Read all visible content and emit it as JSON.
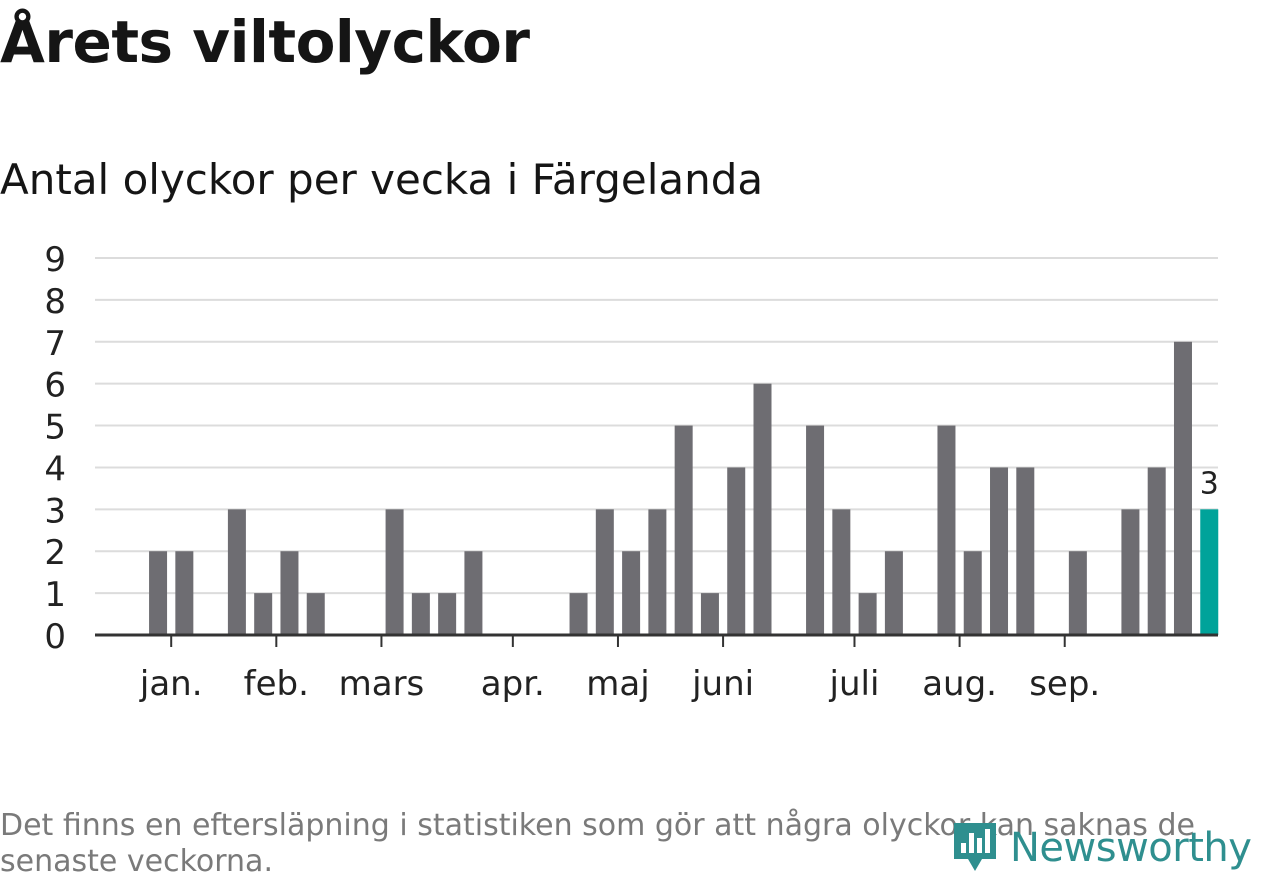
{
  "title": "Årets viltolyckor",
  "subtitle": "Antal olyckor per vecka i Färgelanda",
  "note": "Det finns en eftersläpning i statistiken som gör att några olyckor kan saknas de senaste veckorna.",
  "logo": {
    "text": "Newsworthy",
    "icon": "newsworthy-logo-icon",
    "color": "#2f8f8f"
  },
  "chart_data": {
    "type": "bar",
    "title": "Antal olyckor per vecka i Färgelanda",
    "xlabel": "",
    "ylabel": "",
    "ylim": [
      0,
      9
    ],
    "yticks": [
      "0",
      "1",
      "2",
      "3",
      "4",
      "5",
      "6",
      "7",
      "8",
      "9"
    ],
    "grid": true,
    "weeks": [
      1,
      2,
      3,
      4,
      5,
      6,
      7,
      8,
      9,
      10,
      11,
      12,
      13,
      14,
      15,
      16,
      17,
      18,
      19,
      20,
      21,
      22,
      23,
      24,
      25,
      26,
      27,
      28,
      29,
      30,
      31,
      32,
      33,
      34,
      35,
      36,
      37,
      38,
      39,
      40,
      41,
      42,
      43
    ],
    "values": [
      0,
      0,
      2,
      2,
      0,
      3,
      1,
      2,
      1,
      0,
      0,
      3,
      1,
      1,
      2,
      0,
      0,
      0,
      1,
      3,
      2,
      3,
      5,
      1,
      4,
      6,
      0,
      5,
      3,
      1,
      2,
      0,
      5,
      2,
      4,
      4,
      0,
      2,
      0,
      3,
      4,
      7,
      3
    ],
    "highlight_index": 42,
    "highlight_label": "3",
    "bar_color": "#6e6d72",
    "highlight_color": "#00a39a",
    "month_labels": [
      {
        "label": "jan.",
        "week": 3
      },
      {
        "label": "feb.",
        "week": 7
      },
      {
        "label": "mars",
        "week": 11
      },
      {
        "label": "apr.",
        "week": 16
      },
      {
        "label": "maj",
        "week": 20
      },
      {
        "label": "juni",
        "week": 24
      },
      {
        "label": "juli",
        "week": 29
      },
      {
        "label": "aug.",
        "week": 33
      },
      {
        "label": "sep.",
        "week": 37
      }
    ]
  }
}
